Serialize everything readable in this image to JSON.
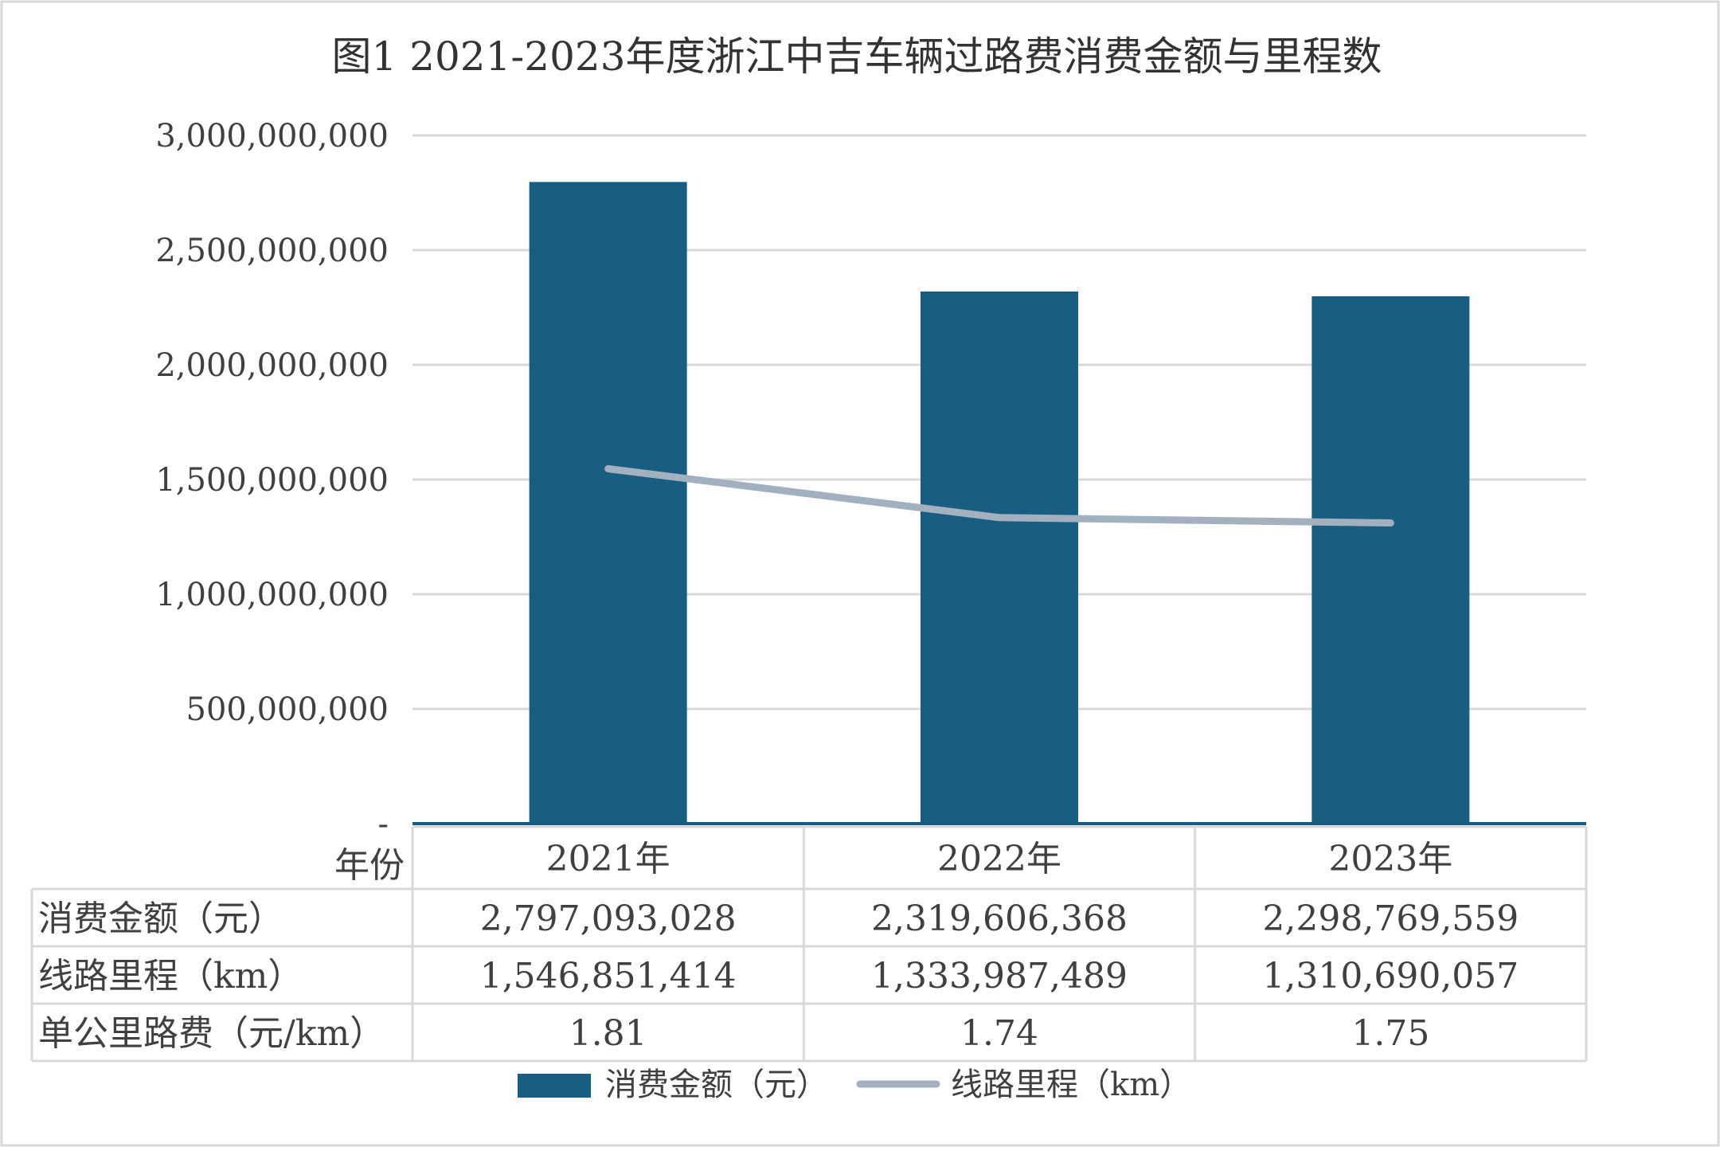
{
  "chart_data": {
    "type": "bar",
    "title": "图1 2021-2023年度浙江中吉车辆过路费消费金额与里程数",
    "categories": [
      "2021年",
      "2022年",
      "2023年"
    ],
    "series": [
      {
        "name": "消费金额（元）",
        "type": "bar",
        "values": [
          2797093028,
          2319606368,
          2298769559
        ],
        "color": "#175e82"
      },
      {
        "name": "线路里程（km）",
        "type": "line",
        "values": [
          1546851414,
          1333987489,
          1310690057
        ],
        "color": "#a3b1bf"
      }
    ],
    "ylim": [
      0,
      3000000000
    ],
    "yticks": [
      "-",
      "500,000,000",
      "1,000,000,000",
      "1,500,000,000",
      "2,000,000,000",
      "2,500,000,000",
      "3,000,000,000"
    ],
    "grid": true,
    "legend": "bottom",
    "data_table": {
      "header_label": "年份",
      "rows": [
        {
          "label": "消费金额（元）",
          "values": [
            "2,797,093,028",
            "2,319,606,368",
            "2,298,769,559"
          ]
        },
        {
          "label": "线路里程（km）",
          "values": [
            "1,546,851,414",
            "1,333,987,489",
            "1,310,690,057"
          ]
        },
        {
          "label": "单公里路费（元/km）",
          "values": [
            "1.81",
            "1.74",
            "1.75"
          ]
        }
      ]
    }
  }
}
